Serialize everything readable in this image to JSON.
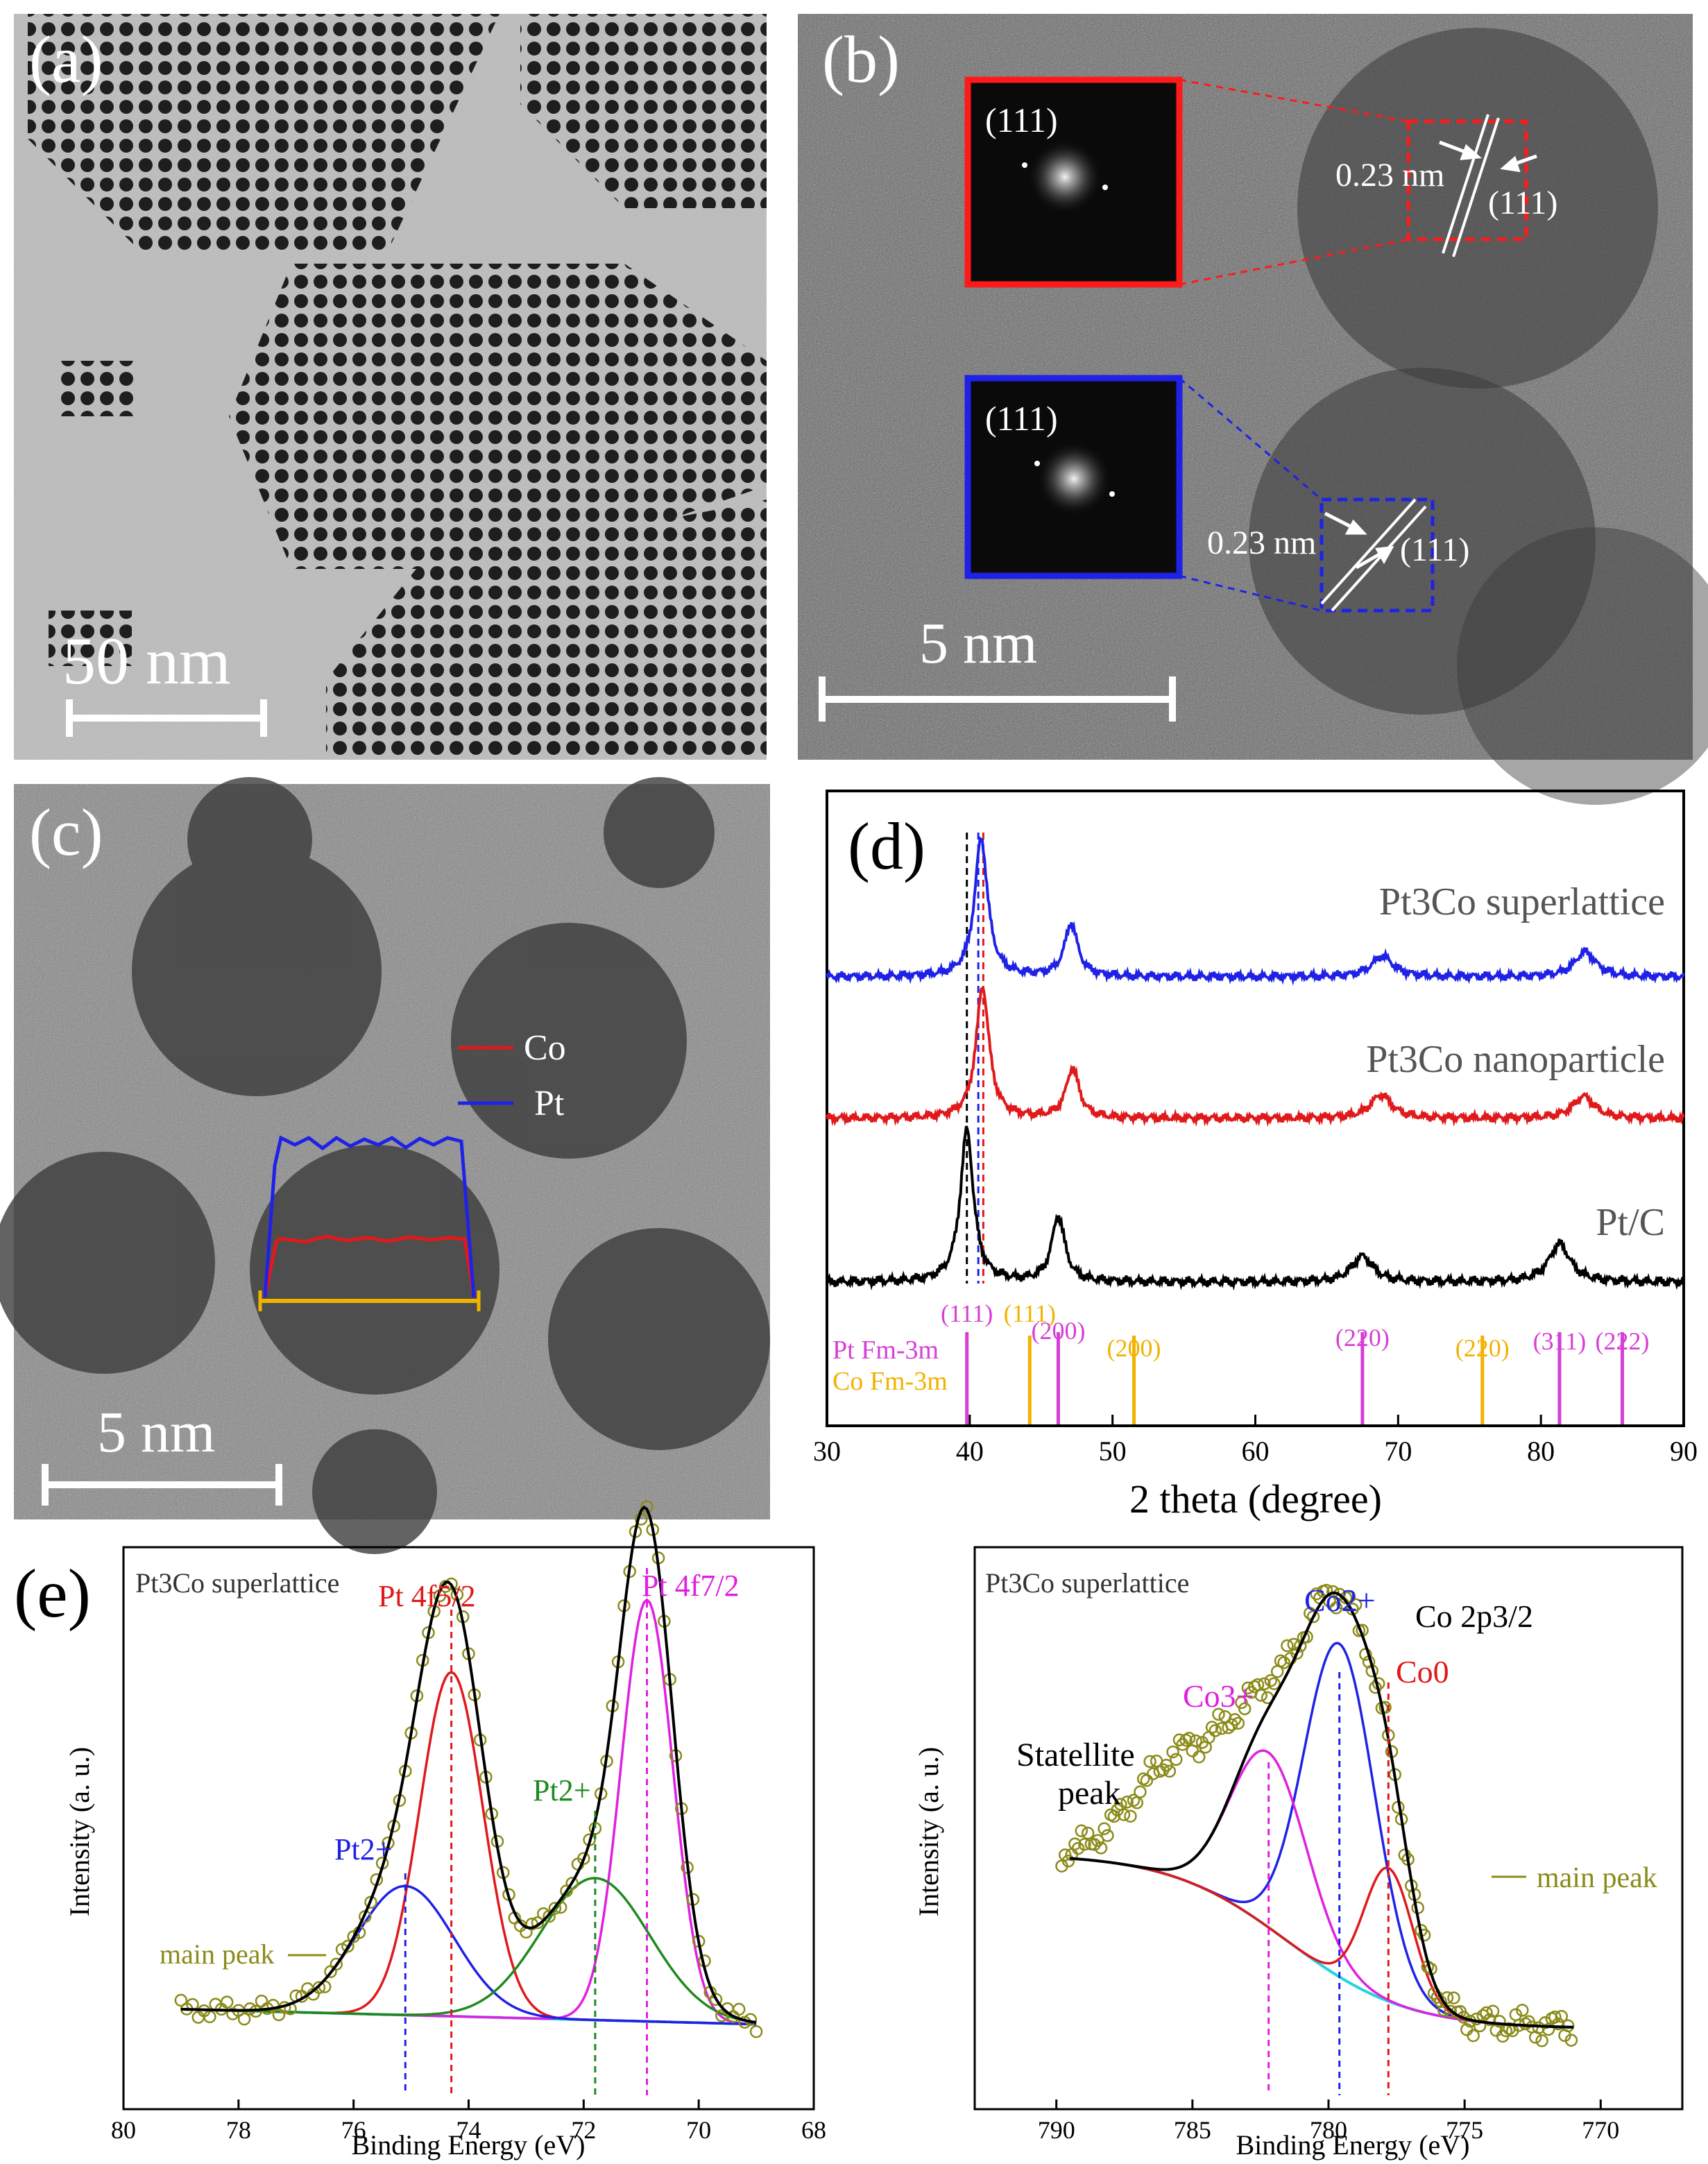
{
  "panel_a": {
    "label": "(a)",
    "scale_bar": "50 nm"
  },
  "panel_b": {
    "label": "(b)",
    "scale_bar": "5 nm",
    "fft_label_top": "(111)",
    "fft_label_bottom": "(111)",
    "spacing_top": "0.23 nm",
    "plane_top": "(111)",
    "spacing_bottom": "0.23 nm",
    "plane_bottom": "(111)"
  },
  "panel_c": {
    "label": "(c)",
    "scale_bar": "5 nm",
    "legend": [
      {
        "name": "Co",
        "color": "#e0191b"
      },
      {
        "name": "Pt",
        "color": "#1f22e6"
      }
    ]
  },
  "chart_data": [
    {
      "type": "line",
      "panel": "(d)",
      "xlabel": "2 theta (degree)",
      "ylabel": "",
      "xlim": [
        30,
        90
      ],
      "xticks": [
        "30",
        "40",
        "50",
        "60",
        "70",
        "80",
        "90"
      ],
      "series": [
        {
          "name": "Pt3Co superlattice",
          "color": "#1f22e6",
          "peaks": [
            [
              40.8,
              1.0
            ],
            [
              47.1,
              0.38
            ],
            [
              68.9,
              0.15
            ],
            [
              83.1,
              0.18
            ]
          ]
        },
        {
          "name": "Pt3Co nanoparticle",
          "color": "#e0191b",
          "peaks": [
            [
              40.9,
              0.95
            ],
            [
              47.2,
              0.36
            ],
            [
              68.8,
              0.17
            ],
            [
              83.0,
              0.16
            ]
          ]
        },
        {
          "name": "Pt/C",
          "color": "#000000",
          "peaks": [
            [
              39.8,
              1.0
            ],
            [
              46.2,
              0.43
            ],
            [
              67.5,
              0.17
            ],
            [
              81.3,
              0.25
            ]
          ]
        }
      ],
      "reference_lines": {
        "Pt Fm-3m": {
          "color": "#d63fd6",
          "positions": [
            39.8,
            46.2,
            67.5,
            81.3,
            85.7
          ],
          "labels": [
            "(111)",
            "(200)",
            "(220)",
            "(311)",
            "(222)"
          ]
        },
        "Co Fm-3m": {
          "color": "#f2b200",
          "positions": [
            44.2,
            51.5,
            75.9
          ],
          "labels": [
            "(111)",
            "(200)",
            "(220)"
          ]
        }
      },
      "ref_names": [
        "Pt Fm-3m",
        "Co Fm-3m"
      ]
    },
    {
      "type": "line",
      "panel": "(e) left",
      "title": "Pt3Co superlattice",
      "xlabel": "Binding Energy (eV)",
      "ylabel": "Intensity (a. u.)",
      "xlim": [
        80,
        68
      ],
      "xticks": [
        "80",
        "78",
        "76",
        "74",
        "72",
        "70",
        "68"
      ],
      "components": [
        {
          "name": "Pt 4f5/2",
          "center": 74.3,
          "color": "#e0191b"
        },
        {
          "name": "Pt 4f7/2",
          "center": 70.9,
          "color": "#e020e0"
        },
        {
          "name": "Pt2+",
          "center": 75.1,
          "color": "#1f22e6"
        },
        {
          "name": "Pt2+",
          "center": 71.8,
          "color": "#1f8a1f"
        }
      ],
      "annotation": "main peak"
    },
    {
      "type": "line",
      "panel": "(e) right",
      "title": "Pt3Co superlattice",
      "xlabel": "Binding Energy (eV)",
      "ylabel": "Intensity (a. u.)",
      "xlim": [
        793,
        767
      ],
      "xticks": [
        "790",
        "785",
        "780",
        "775",
        "770"
      ],
      "subtitle": "Co 2p3/2",
      "components": [
        {
          "name": "Co2+",
          "center": 779.6,
          "color": "#1f22e6"
        },
        {
          "name": "Co3+",
          "center": 782.2,
          "color": "#e020e0"
        },
        {
          "name": "Co0",
          "center": 777.8,
          "color": "#e0191b"
        }
      ],
      "annotations": [
        "Statellite peak",
        "main peak"
      ]
    }
  ],
  "panel_d_text": {
    "label": "(d)",
    "s1": "Pt3Co superlattice",
    "s2": "Pt3Co nanoparticle",
    "s3": "Pt/C",
    "ref_pt": "Pt Fm-3m",
    "ref_co": "Co Fm-3m"
  },
  "panel_e_text": {
    "label": "(e)",
    "left_title": "Pt3Co superlattice",
    "right_title": "Pt3Co superlattice",
    "co2p": "Co 2p3/2",
    "satellite_1": "Statellite",
    "satellite_2": "peak",
    "main_peak": "main peak"
  }
}
